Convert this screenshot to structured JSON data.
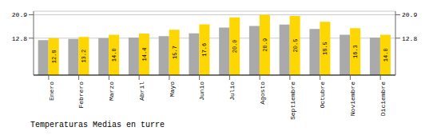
{
  "chart_data": {
    "type": "bar",
    "title": "Temperaturas Medias en turre",
    "categories": [
      "Enero",
      "Febrero",
      "Marzo",
      "Abril",
      "Mayo",
      "Junio",
      "Julio",
      "Agosto",
      "Septiembre",
      "Octubre",
      "Noviembre",
      "Diciembre"
    ],
    "series": [
      {
        "color": "#AAAAAA",
        "values": [
          12.1,
          12.5,
          12.8,
          13.0,
          13.5,
          14.5,
          16.5,
          17.0,
          17.5,
          16.0,
          14.0,
          13.0
        ]
      },
      {
        "color": "#FFD700",
        "values": [
          12.8,
          13.2,
          14.0,
          14.4,
          15.7,
          17.6,
          20.0,
          20.9,
          20.5,
          18.5,
          16.3,
          14.0
        ],
        "data_labels": true,
        "value_labels": [
          "12.8",
          "13.2",
          "14.0",
          "14.4",
          "15.7",
          "17.6",
          "20.0",
          "20.9",
          "20.5",
          "18.5",
          "16.3",
          "14.0"
        ]
      }
    ],
    "ylim": [
      0,
      22.154
    ],
    "yticks": [
      12.8,
      20.9
    ],
    "y2lim": [
      0,
      22.154
    ],
    "y2ticks": [
      12.8,
      20.9
    ],
    "grid": true
  }
}
